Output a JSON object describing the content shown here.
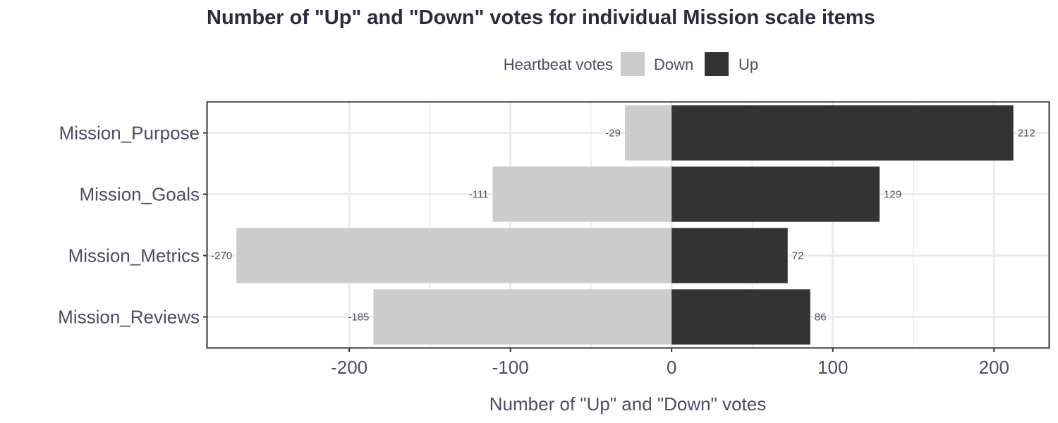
{
  "chart_data": {
    "type": "bar",
    "orientation": "horizontal",
    "stacking": "diverging",
    "title": "Number of \"Up\" and \"Down\" votes for individual Mission scale items",
    "xlabel": "Number of \"Up\" and \"Down\" votes",
    "ylabel": "",
    "categories": [
      "Mission_Purpose",
      "Mission_Goals",
      "Mission_Metrics",
      "Mission_Reviews"
    ],
    "series": [
      {
        "name": "Down",
        "values": [
          -29,
          -111,
          -270,
          -185
        ],
        "labels": [
          "-29",
          "-111",
          "-270",
          "-185"
        ],
        "color": "#cccccc"
      },
      {
        "name": "Up",
        "values": [
          212,
          129,
          72,
          86
        ],
        "labels": [
          "212",
          "129",
          "72",
          "86"
        ],
        "color": "#333333"
      }
    ],
    "xlim": [
      -288,
      234
    ],
    "xticks": [
      -200,
      -100,
      0,
      100,
      200
    ],
    "xtick_labels": [
      "-200",
      "-100",
      "0",
      "100",
      "200"
    ],
    "grid": true,
    "legend": {
      "title": "Heartbeat votes",
      "position": "top",
      "entries": [
        "Down",
        "Up"
      ]
    },
    "colors": {
      "text": "#4d4d66",
      "title": "#2b2b40",
      "grid": "#ebebeb",
      "panel_border": "#333333",
      "background": "#ffffff"
    }
  }
}
